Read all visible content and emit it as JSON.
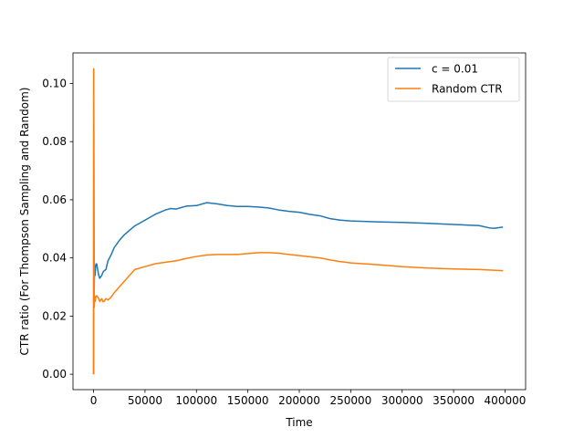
{
  "chart_data": {
    "type": "line",
    "title": "",
    "xlabel": "Time",
    "ylabel": "CTR ratio (For Thompson Sampling and Random)",
    "xlim": [
      -20000,
      420000
    ],
    "ylim": [
      -0.0053,
      0.1105
    ],
    "xticks": [
      0,
      50000,
      100000,
      150000,
      200000,
      250000,
      300000,
      350000,
      400000
    ],
    "xtick_labels": [
      "0",
      "50000",
      "100000",
      "150000",
      "200000",
      "250000",
      "300000",
      "350000",
      "400000"
    ],
    "yticks": [
      0.0,
      0.02,
      0.04,
      0.06,
      0.08,
      0.1
    ],
    "ytick_labels": [
      "0.00",
      "0.02",
      "0.04",
      "0.06",
      "0.08",
      "0.10"
    ],
    "grid": false,
    "legend_position": "upper right",
    "series": [
      {
        "name": "c = 0.01",
        "color": "#1f77b4",
        "x": [
          0,
          150,
          400,
          700,
          1000,
          1500,
          2000,
          3000,
          4000,
          5000,
          6000,
          7000,
          8000,
          9000,
          10000,
          12000,
          14000,
          17000,
          20000,
          25000,
          30000,
          40000,
          50000,
          60000,
          70000,
          75000,
          80000,
          90000,
          100000,
          110000,
          120000,
          130000,
          140000,
          150000,
          160000,
          170000,
          180000,
          190000,
          200000,
          210000,
          220000,
          230000,
          240000,
          250000,
          275000,
          300000,
          325000,
          350000,
          375000,
          385000,
          390000,
          398000
        ],
        "values": [
          0.0,
          0.105,
          0.05,
          0.03,
          0.038,
          0.034,
          0.037,
          0.038,
          0.036,
          0.034,
          0.033,
          0.0335,
          0.034,
          0.035,
          0.0355,
          0.036,
          0.039,
          0.041,
          0.0435,
          0.046,
          0.048,
          0.051,
          0.053,
          0.055,
          0.0565,
          0.057,
          0.0568,
          0.0578,
          0.058,
          0.059,
          0.0586,
          0.058,
          0.0577,
          0.0577,
          0.0575,
          0.0572,
          0.0565,
          0.056,
          0.0557,
          0.055,
          0.0545,
          0.0535,
          0.053,
          0.0527,
          0.0524,
          0.0522,
          0.0519,
          0.0515,
          0.0511,
          0.0503,
          0.0502,
          0.0506
        ]
      },
      {
        "name": "Random CTR",
        "color": "#ff7f0e",
        "x": [
          0,
          150,
          300,
          500,
          700,
          1000,
          1500,
          2000,
          3000,
          4000,
          5000,
          6000,
          7000,
          8000,
          9000,
          10000,
          12000,
          14000,
          17000,
          20000,
          25000,
          30000,
          40000,
          50000,
          60000,
          70000,
          80000,
          90000,
          100000,
          110000,
          120000,
          130000,
          140000,
          150000,
          160000,
          170000,
          180000,
          190000,
          200000,
          210000,
          220000,
          230000,
          240000,
          250000,
          275000,
          300000,
          325000,
          350000,
          375000,
          398000
        ],
        "values": [
          0.0,
          0.105,
          0.07,
          0.04,
          0.023,
          0.027,
          0.025,
          0.0265,
          0.027,
          0.0265,
          0.026,
          0.025,
          0.0255,
          0.026,
          0.025,
          0.025,
          0.026,
          0.0255,
          0.0265,
          0.028,
          0.03,
          0.032,
          0.036,
          0.037,
          0.038,
          0.0385,
          0.039,
          0.0398,
          0.0405,
          0.041,
          0.0412,
          0.0412,
          0.0412,
          0.0415,
          0.0418,
          0.0418,
          0.0416,
          0.0412,
          0.0408,
          0.0404,
          0.04,
          0.0393,
          0.0387,
          0.0383,
          0.0377,
          0.037,
          0.0365,
          0.0362,
          0.036,
          0.0356
        ]
      }
    ]
  }
}
